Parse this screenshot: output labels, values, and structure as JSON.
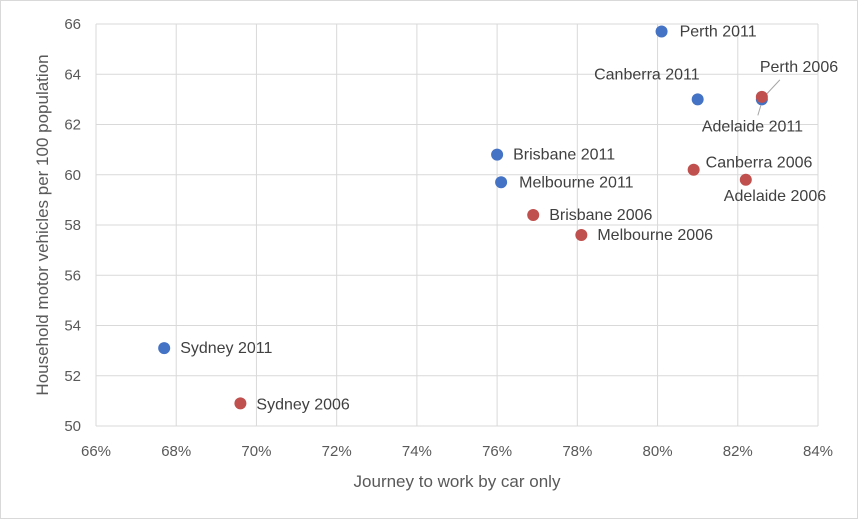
{
  "chart_data": {
    "type": "scatter",
    "title": "",
    "xlabel": "Journey to work by car only",
    "ylabel": "Household motor vehicles per 100 population",
    "xlim": [
      0.66,
      0.84
    ],
    "ylim": [
      50,
      66
    ],
    "x_ticks": [
      "66%",
      "68%",
      "70%",
      "72%",
      "74%",
      "76%",
      "78%",
      "80%",
      "82%",
      "84%"
    ],
    "y_ticks": [
      "50",
      "52",
      "54",
      "56",
      "58",
      "60",
      "62",
      "64",
      "66"
    ],
    "grid": true,
    "legend": "none",
    "colors": {
      "2011": "#4472c4",
      "2006": "#c0504d"
    },
    "series": [
      {
        "group": "2011",
        "points": [
          {
            "label": "Perth 2011",
            "x": 0.801,
            "y": 65.7
          },
          {
            "label": "Canberra 2011",
            "x": 0.81,
            "y": 63.0
          },
          {
            "label": "Adelaide 2011",
            "x": 0.826,
            "y": 63.0
          },
          {
            "label": "Brisbane 2011",
            "x": 0.76,
            "y": 60.8
          },
          {
            "label": "Melbourne 2011",
            "x": 0.761,
            "y": 59.7
          },
          {
            "label": "Sydney 2011",
            "x": 0.677,
            "y": 53.1
          }
        ]
      },
      {
        "group": "2006",
        "points": [
          {
            "label": "Perth 2006",
            "x": 0.826,
            "y": 63.1
          },
          {
            "label": "Canberra 2006",
            "x": 0.809,
            "y": 60.2
          },
          {
            "label": "Adelaide 2006",
            "x": 0.822,
            "y": 59.8
          },
          {
            "label": "Brisbane 2006",
            "x": 0.769,
            "y": 58.4
          },
          {
            "label": "Melbourne 2006",
            "x": 0.781,
            "y": 57.6
          },
          {
            "label": "Sydney 2006",
            "x": 0.696,
            "y": 50.9
          }
        ]
      }
    ]
  }
}
